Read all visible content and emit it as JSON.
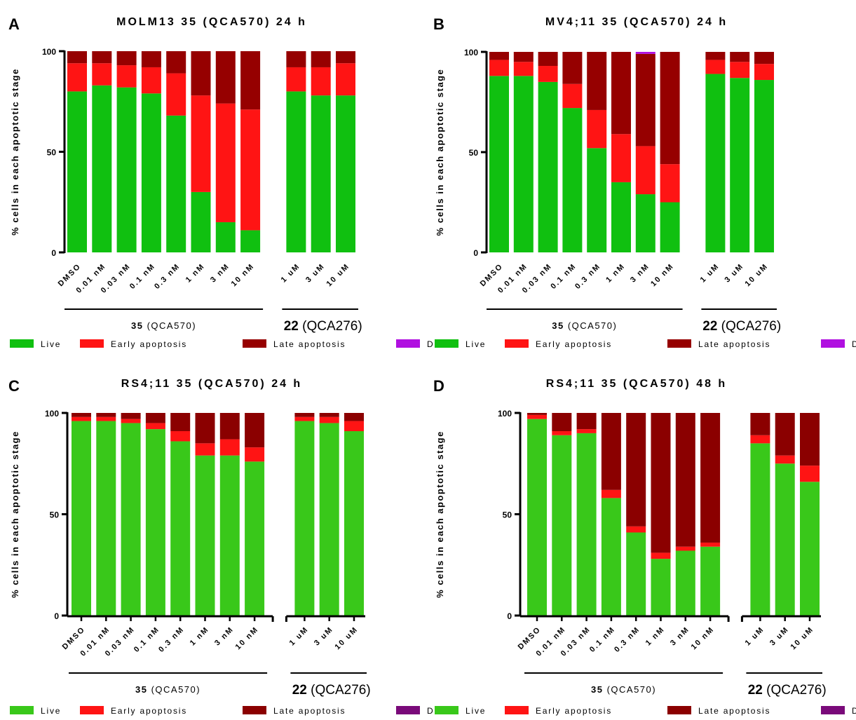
{
  "chart_data": [
    {
      "type": "bar",
      "stacked": true,
      "panel": "A",
      "title": "MOLM13 35 (QCA570) 24 h",
      "ylabel": "% cells in each apoptotic stage",
      "ylim": [
        0,
        100
      ],
      "yticks": [
        "0",
        "50",
        "100"
      ],
      "groups": [
        {
          "number": "35",
          "name": "(QCA570)",
          "categories": [
            "DMSO",
            "0.01 nM",
            "0.03 nM",
            "0.1 nM",
            "0.3 nM",
            "1 nM",
            "3 nM",
            "10 nM"
          ]
        },
        {
          "number": "22",
          "name": "(QCA276)",
          "categories": [
            "1 uM",
            "3 uM",
            "10 uM"
          ]
        }
      ],
      "categories": [
        "DMSO",
        "0.01 nM",
        "0.03 nM",
        "0.1 nM",
        "0.3 nM",
        "1 nM",
        "3 nM",
        "10 nM",
        "1 uM",
        "3 uM",
        "10 uM"
      ],
      "series": [
        {
          "name": "Live",
          "color": "#10c010",
          "values": [
            80,
            83,
            82,
            79,
            68,
            30,
            15,
            11,
            80,
            78,
            78
          ]
        },
        {
          "name": "Early apoptosis",
          "color": "#ff1414",
          "values": [
            14,
            11,
            11,
            13,
            21,
            48,
            59,
            60,
            12,
            14,
            16
          ]
        },
        {
          "name": "Late apoptosis",
          "color": "#960000",
          "values": [
            6,
            6,
            7,
            8,
            11,
            22,
            26,
            29,
            8,
            8,
            6
          ]
        },
        {
          "name": "Dead",
          "color": "#b010e0",
          "values": [
            0,
            0,
            0,
            0,
            0,
            0,
            0,
            0,
            0,
            0,
            0
          ]
        }
      ]
    },
    {
      "type": "bar",
      "stacked": true,
      "panel": "B",
      "title": "MV4;11 35 (QCA570) 24 h",
      "ylabel": "% cells in each apoptotic stage",
      "ylim": [
        0,
        100
      ],
      "yticks": [
        "0",
        "50",
        "100"
      ],
      "groups": [
        {
          "number": "35",
          "name": "(QCA570)",
          "categories": [
            "DMSO",
            "0.01 nM",
            "0.03 nM",
            "0.1 nM",
            "0.3 nM",
            "1 nM",
            "3 nM",
            "10 nM"
          ]
        },
        {
          "number": "22",
          "name": "(QCA276)",
          "categories": [
            "1 uM",
            "3 uM",
            "10 uM"
          ]
        }
      ],
      "categories": [
        "DMSO",
        "0.01 nM",
        "0.03 nM",
        "0.1 nM",
        "0.3 nM",
        "1 nM",
        "3 nM",
        "10 nM",
        "1 uM",
        "3 uM",
        "10 uM"
      ],
      "series": [
        {
          "name": "Live",
          "color": "#10c010",
          "values": [
            88,
            88,
            85,
            72,
            52,
            35,
            29,
            25,
            89,
            87,
            86
          ]
        },
        {
          "name": "Early apoptosis",
          "color": "#ff1414",
          "values": [
            8,
            7,
            8,
            12,
            19,
            24,
            24,
            19,
            7,
            8,
            8
          ]
        },
        {
          "name": "Late apoptosis",
          "color": "#960000",
          "values": [
            4,
            5,
            7,
            16,
            29,
            41,
            46,
            56,
            4,
            5,
            6
          ]
        },
        {
          "name": "Dead",
          "color": "#b010e0",
          "values": [
            0,
            0,
            0,
            0,
            0,
            0,
            1,
            0,
            0,
            0,
            0
          ]
        }
      ]
    },
    {
      "type": "bar",
      "stacked": true,
      "panel": "C",
      "title": "RS4;11 35 (QCA570) 24 h",
      "ylabel": "% cells in each apoptotic stage",
      "ylim": [
        0,
        100
      ],
      "yticks": [
        "0",
        "50",
        "100"
      ],
      "groups": [
        {
          "number": "35",
          "name": "(QCA570)",
          "categories": [
            "DMSO",
            "0.01 nM",
            "0.03 nM",
            "0.1 nM",
            "0.3 nM",
            "1 nM",
            "3 nM",
            "10 nM"
          ]
        },
        {
          "number": "22",
          "name": "(QCA276)",
          "categories": [
            "1 uM",
            "3 uM",
            "10 uM"
          ]
        }
      ],
      "categories": [
        "DMSO",
        "0.01 nM",
        "0.03 nM",
        "0.1 nM",
        "0.3 nM",
        "1 nM",
        "3 nM",
        "10 nM",
        "1 uM",
        "3 uM",
        "10 uM"
      ],
      "series": [
        {
          "name": "Live",
          "color": "#39c81a",
          "values": [
            96,
            96,
            95,
            92,
            86,
            79,
            79,
            76,
            96,
            95,
            91
          ]
        },
        {
          "name": "Early apoptosis",
          "color": "#ff1414",
          "values": [
            2,
            2,
            2,
            3,
            5,
            6,
            8,
            7,
            2,
            3,
            5
          ]
        },
        {
          "name": "Late apoptosis",
          "color": "#8b0000",
          "values": [
            2,
            2,
            3,
            5,
            9,
            15,
            13,
            17,
            2,
            2,
            4
          ]
        },
        {
          "name": "Dead",
          "color": "#7a0a7a",
          "values": [
            0,
            0,
            0,
            0,
            0,
            0,
            0,
            0,
            0,
            0,
            0
          ]
        }
      ]
    },
    {
      "type": "bar",
      "stacked": true,
      "panel": "D",
      "title": "RS4;11 35 (QCA570) 48 h",
      "ylabel": "% cells in each apoptotic stage",
      "ylim": [
        0,
        100
      ],
      "yticks": [
        "0",
        "50",
        "100"
      ],
      "groups": [
        {
          "number": "35",
          "name": "(QCA570)",
          "categories": [
            "DMSO",
            "0.01 nM",
            "0.03 nM",
            "0.1 nM",
            "0.3 nM",
            "1 nM",
            "3 nM",
            "10 nM"
          ]
        },
        {
          "number": "22",
          "name": "(QCA276)",
          "categories": [
            "1 uM",
            "3 uM",
            "10 uM"
          ]
        }
      ],
      "categories": [
        "DMSO",
        "0.01 nM",
        "0.03 nM",
        "0.1 nM",
        "0.3 nM",
        "1 nM",
        "3 nM",
        "10 nM",
        "1 uM",
        "3 uM",
        "10 uM"
      ],
      "series": [
        {
          "name": "Live",
          "color": "#39c81a",
          "values": [
            97,
            89,
            90,
            58,
            41,
            28,
            32,
            34,
            85,
            75,
            66
          ]
        },
        {
          "name": "Early apoptosis",
          "color": "#ff1414",
          "values": [
            2,
            2,
            2,
            4,
            3,
            3,
            2,
            2,
            4,
            4,
            8
          ]
        },
        {
          "name": "Late apoptosis",
          "color": "#8b0000",
          "values": [
            1,
            9,
            8,
            38,
            56,
            69,
            66,
            64,
            11,
            21,
            26
          ]
        },
        {
          "name": "Dead",
          "color": "#7a0a7a",
          "values": [
            0,
            0,
            0,
            0,
            0,
            0,
            0,
            0,
            0,
            0,
            0
          ]
        }
      ]
    }
  ]
}
